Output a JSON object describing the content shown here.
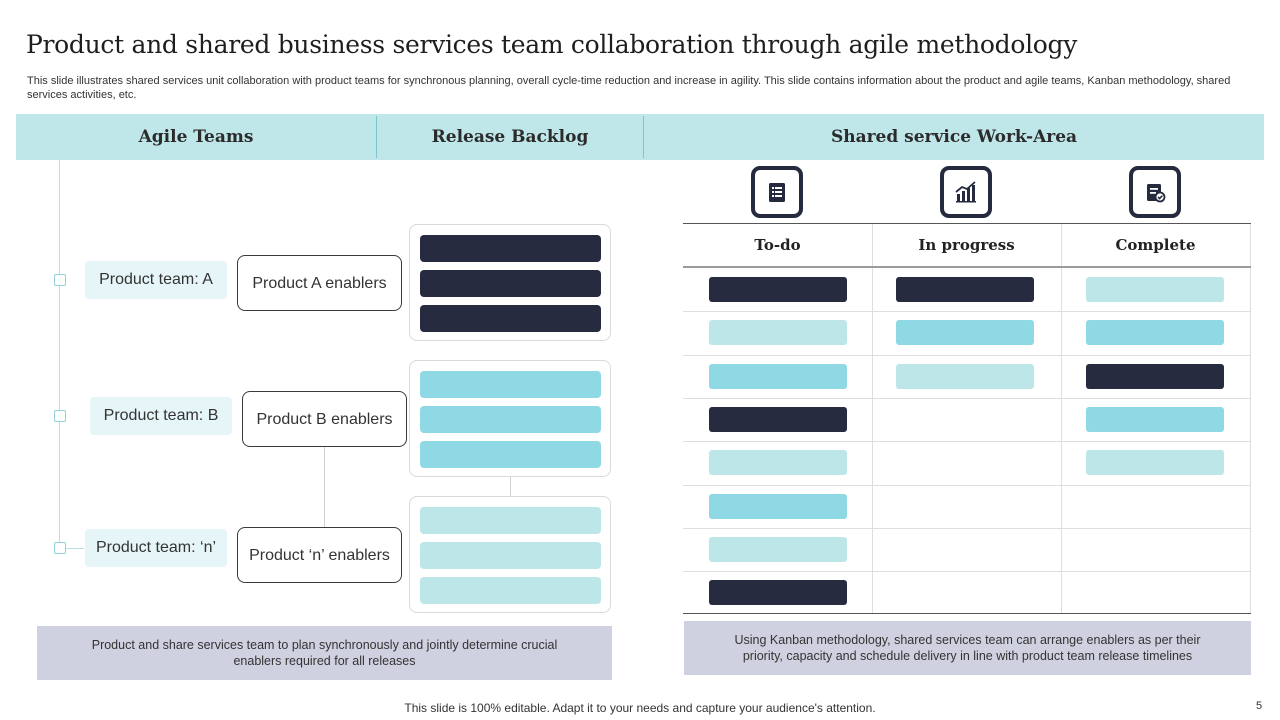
{
  "slide": {
    "title": "Product and shared business services team collaboration through agile methodology",
    "subtitle": "This slide illustrates shared services unit collaboration with product teams for synchronous planning, overall cycle-time reduction and increase in agility. This slide contains information about the product and agile teams, Kanban methodology, shared services activities, etc.",
    "footer": "This slide is 100% editable. Adapt it to your needs and capture your audience's attention.",
    "page_number": "5"
  },
  "headers": {
    "agile_teams": "Agile Teams",
    "release_backlog": "Release Backlog",
    "shared_work_area": "Shared service Work-Area"
  },
  "teams": [
    {
      "name": "Product team: A",
      "enablers": "Product A enablers",
      "backlog": [
        "navy",
        "navy",
        "navy"
      ]
    },
    {
      "name": "Product team: B",
      "enablers": "Product B enablers",
      "backlog": [
        "cyan",
        "cyan",
        "cyan"
      ]
    },
    {
      "name": "Product team: ‘n’",
      "enablers": "Product ‘n’ enablers",
      "backlog": [
        "pale",
        "pale",
        "pale"
      ]
    }
  ],
  "left_note": "Product and share services team to plan synchronously and jointly determine crucial enablers required for all releases",
  "kanban": {
    "icons": [
      "todo-list-icon",
      "progress-chart-icon",
      "complete-checklist-icon"
    ],
    "columns": [
      "To-do",
      "In progress",
      "Complete"
    ],
    "todo": [
      "navy",
      "pale",
      "cyan",
      "navy",
      "pale",
      "cyan",
      "pale",
      "navy"
    ],
    "in_progress": [
      "navy",
      "cyan",
      "pale"
    ],
    "complete": [
      "pale",
      "cyan",
      "navy",
      "cyan",
      "pale"
    ],
    "colors": {
      "navy": "#272b40",
      "cyan": "#8fd9e4",
      "pale": "#bde6e8"
    }
  },
  "right_note": "Using Kanban methodology, shared services team can arrange enablers as per their priority, capacity and schedule delivery in line with product team release timelines"
}
